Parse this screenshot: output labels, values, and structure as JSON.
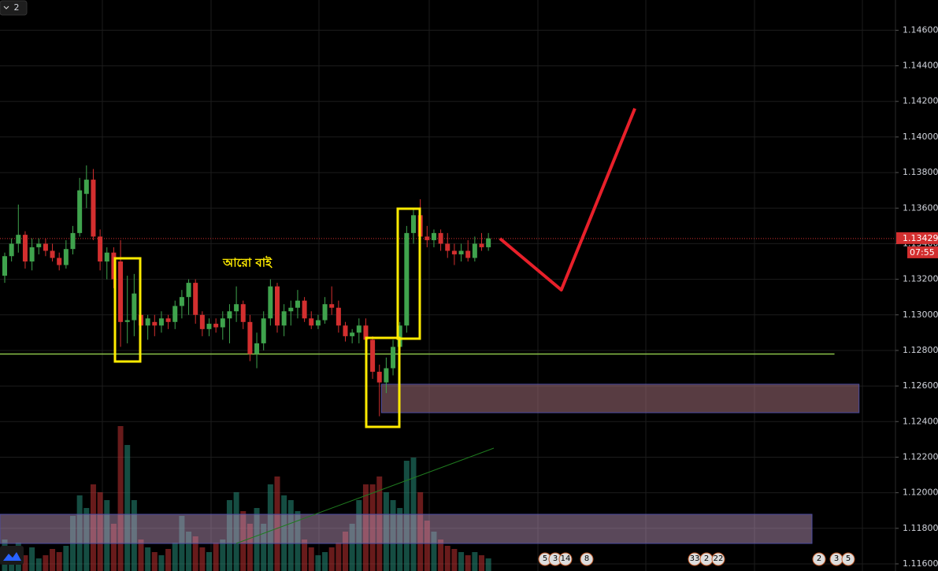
{
  "chart_data": {
    "type": "candlestick",
    "badge": "2",
    "annotation": "আরো বাই",
    "up_color": "#3fa34d",
    "down_color": "#d32f2f",
    "open": [
      1.1322,
      1.1333,
      1.134,
      1.1345,
      1.133,
      1.1338,
      1.134,
      1.1336,
      1.1332,
      1.1328,
      1.1337,
      1.1346,
      1.1368,
      1.1376,
      1.1344,
      1.133,
      1.1335,
      1.133,
      1.1296,
      1.1297,
      1.13,
      1.1294,
      1.1296,
      1.1294,
      1.1298,
      1.1296,
      1.1305,
      1.131,
      1.1318,
      1.13,
      1.1292,
      1.1295,
      1.1293,
      1.1298,
      1.1302,
      1.1306,
      1.1296,
      1.1278,
      1.1284,
      1.1298,
      1.1316,
      1.1294,
      1.1302,
      1.1304,
      1.1308,
      1.1298,
      1.1294,
      1.1297,
      1.1306,
      1.1304,
      1.1294,
      1.1288,
      1.129,
      1.1294,
      1.1286,
      1.1268,
      1.1262,
      1.127,
      1.1282,
      1.1294,
      1.1346,
      1.1356,
      1.1344,
      1.1342,
      1.1346,
      1.134,
      1.1336,
      1.1334,
      1.1336,
      1.1332,
      1.134,
      1.1338
    ],
    "high": [
      1.1335,
      1.1343,
      1.1362,
      1.1347,
      1.1343,
      1.1343,
      1.1343,
      1.134,
      1.1335,
      1.1342,
      1.135,
      1.1377,
      1.1384,
      1.1382,
      1.1348,
      1.1338,
      1.1338,
      1.1342,
      1.1322,
      1.1323,
      1.1304,
      1.13,
      1.13,
      1.1302,
      1.13,
      1.1308,
      1.1314,
      1.132,
      1.132,
      1.1302,
      1.1298,
      1.1298,
      1.1302,
      1.1306,
      1.1316,
      1.1308,
      1.13,
      1.129,
      1.1302,
      1.132,
      1.1318,
      1.1306,
      1.1308,
      1.1314,
      1.131,
      1.1302,
      1.13,
      1.131,
      1.1316,
      1.1308,
      1.1296,
      1.1292,
      1.1298,
      1.1298,
      1.1288,
      1.1272,
      1.1276,
      1.1286,
      1.1296,
      1.135,
      1.136,
      1.1365,
      1.135,
      1.1348,
      1.1348,
      1.1346,
      1.134,
      1.134,
      1.1342,
      1.1344,
      1.1346,
      1.1346
    ],
    "low": [
      1.1318,
      1.133,
      1.1335,
      1.1326,
      1.1325,
      1.1334,
      1.1333,
      1.133,
      1.1325,
      1.1326,
      1.1334,
      1.1344,
      1.136,
      1.1342,
      1.1325,
      1.132,
      1.1315,
      1.1282,
      1.1284,
      1.1288,
      1.129,
      1.1286,
      1.1288,
      1.129,
      1.1292,
      1.1292,
      1.1298,
      1.13,
      1.1295,
      1.1288,
      1.1288,
      1.129,
      1.1286,
      1.1284,
      1.1296,
      1.1292,
      1.1274,
      1.127,
      1.128,
      1.1294,
      1.129,
      1.1288,
      1.1294,
      1.1298,
      1.1296,
      1.1292,
      1.1292,
      1.1295,
      1.13,
      1.129,
      1.1285,
      1.1284,
      1.1284,
      1.1282,
      1.1264,
      1.1243,
      1.1256,
      1.1266,
      1.1278,
      1.129,
      1.134,
      1.134,
      1.1338,
      1.1338,
      1.1336,
      1.1332,
      1.1328,
      1.133,
      1.133,
      1.133,
      1.1336,
      1.1336
    ],
    "close": [
      1.1333,
      1.134,
      1.1345,
      1.133,
      1.1338,
      1.134,
      1.1336,
      1.1332,
      1.1328,
      1.1337,
      1.1346,
      1.137,
      1.1376,
      1.1344,
      1.133,
      1.1335,
      1.132,
      1.1296,
      1.1297,
      1.1312,
      1.1294,
      1.1298,
      1.1294,
      1.1298,
      1.1296,
      1.1305,
      1.131,
      1.1318,
      1.13,
      1.1292,
      1.1295,
      1.1293,
      1.1298,
      1.1302,
      1.1306,
      1.1296,
      1.1278,
      1.1284,
      1.1298,
      1.1316,
      1.1294,
      1.1302,
      1.1304,
      1.1308,
      1.1298,
      1.1294,
      1.1297,
      1.1306,
      1.1304,
      1.1294,
      1.1288,
      1.129,
      1.1294,
      1.1286,
      1.1268,
      1.1262,
      1.127,
      1.1282,
      1.1294,
      1.1346,
      1.1356,
      1.1344,
      1.1342,
      1.1346,
      1.134,
      1.1336,
      1.1334,
      1.1336,
      1.1332,
      1.134,
      1.1338,
      1.1343
    ],
    "volume": [
      20,
      12,
      18,
      10,
      15,
      8,
      10,
      14,
      12,
      16,
      35,
      48,
      40,
      55,
      50,
      45,
      30,
      92,
      80,
      45,
      20,
      15,
      12,
      10,
      14,
      18,
      35,
      25,
      22,
      15,
      12,
      18,
      20,
      45,
      50,
      38,
      30,
      40,
      30,
      55,
      60,
      48,
      45,
      38,
      20,
      15,
      10,
      12,
      15,
      18,
      25,
      30,
      45,
      55,
      55,
      60,
      50,
      45,
      40,
      70,
      72,
      50,
      32,
      25,
      20,
      16,
      14,
      12,
      10,
      12,
      10,
      8
    ],
    "volume_lim": [
      0,
      100
    ],
    "ylim": [
      1.1156,
      1.1477
    ],
    "yticks": [
      {
        "value": 1.116,
        "label": "1.11600"
      },
      {
        "value": 1.118,
        "label": "1.11800"
      },
      {
        "value": 1.12,
        "label": "1.12000"
      },
      {
        "value": 1.122,
        "label": "1.12200"
      },
      {
        "value": 1.124,
        "label": "1.12400"
      },
      {
        "value": 1.126,
        "label": "1.12600"
      },
      {
        "value": 1.128,
        "label": "1.12800"
      },
      {
        "value": 1.13,
        "label": "1.13000"
      },
      {
        "value": 1.132,
        "label": "1.13200"
      },
      {
        "value": 1.134,
        "label": "1.13400"
      },
      {
        "value": 1.136,
        "label": "1.13600"
      },
      {
        "value": 1.138,
        "label": "1.13800"
      },
      {
        "value": 1.14,
        "label": "1.14000"
      },
      {
        "value": 1.142,
        "label": "1.14200"
      },
      {
        "value": 1.144,
        "label": "1.14400"
      },
      {
        "value": 1.146,
        "label": "1.14600"
      }
    ],
    "grid": true,
    "last_price": {
      "value": 1.13429,
      "label": "1.13429"
    },
    "countdown": "07:55",
    "support": {
      "value": 1.1278,
      "x": [
        -0.7,
        121.8
      ],
      "color": "#8bc34a"
    },
    "zone": {
      "x": [
        55.3,
        125.4
      ],
      "y": [
        1.1245,
        1.1261
      ]
    },
    "projection": {
      "x": [
        72.7,
        81.7,
        92.5
      ],
      "values": [
        1.13429,
        1.1314,
        1.1416
      ],
      "color": "#e8202a"
    },
    "events": [
      5,
      3,
      14,
      8,
      33,
      2,
      22,
      2,
      3,
      5
    ]
  }
}
